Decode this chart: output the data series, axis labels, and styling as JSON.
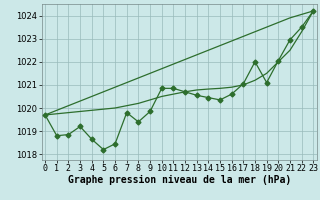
{
  "xlabel": "Graphe pression niveau de la mer (hPa)",
  "hours": [
    0,
    1,
    2,
    3,
    4,
    5,
    6,
    7,
    8,
    9,
    10,
    11,
    12,
    13,
    14,
    15,
    16,
    17,
    18,
    19,
    20,
    21,
    22,
    23
  ],
  "pressure_main": [
    1019.7,
    1018.8,
    1018.85,
    1019.2,
    1018.65,
    1018.2,
    1018.45,
    1019.8,
    1019.4,
    1019.85,
    1020.85,
    1020.85,
    1020.7,
    1020.55,
    1020.45,
    1020.35,
    1020.6,
    1021.05,
    1022.0,
    1021.1,
    1022.05,
    1022.95,
    1023.5,
    1024.2
  ],
  "line_straight": [
    1019.7,
    1019.9,
    1020.1,
    1020.3,
    1020.5,
    1020.7,
    1020.9,
    1021.1,
    1021.3,
    1021.5,
    1021.7,
    1021.9,
    1022.1,
    1022.3,
    1022.5,
    1022.7,
    1022.9,
    1023.1,
    1023.3,
    1023.5,
    1023.7,
    1023.9,
    1024.05,
    1024.2
  ],
  "line_curved": [
    1019.7,
    1019.75,
    1019.8,
    1019.85,
    1019.9,
    1019.95,
    1020.0,
    1020.1,
    1020.2,
    1020.35,
    1020.5,
    1020.6,
    1020.7,
    1020.78,
    1020.82,
    1020.85,
    1020.9,
    1021.0,
    1021.2,
    1021.5,
    1022.0,
    1022.5,
    1023.3,
    1024.2
  ],
  "line_color": "#2d6e2d",
  "bg_color": "#cce8e8",
  "grid_color": "#99bbbb",
  "ylim": [
    1017.75,
    1024.5
  ],
  "xlim": [
    -0.3,
    23.3
  ],
  "yticks": [
    1018,
    1019,
    1020,
    1021,
    1022,
    1023,
    1024
  ],
  "xtick_labels": [
    "0",
    "1",
    "2",
    "3",
    "4",
    "5",
    "6",
    "7",
    "8",
    "9",
    "10",
    "11",
    "12",
    "13",
    "14",
    "15",
    "16",
    "17",
    "18",
    "19",
    "20",
    "21",
    "22",
    "23"
  ],
  "xlabel_fontsize": 7.0,
  "tick_fontsize": 6.0,
  "marker_size": 2.5,
  "line_width": 0.9
}
